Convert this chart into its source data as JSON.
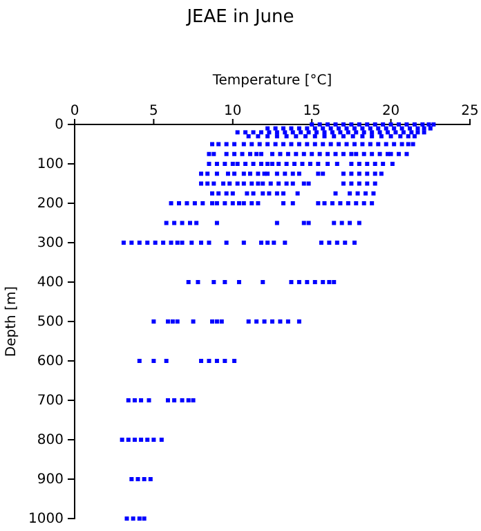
{
  "chart_data": {
    "type": "scatter",
    "title": "JEAE in June",
    "xlabel": "Temperature [°C]",
    "ylabel": "Depth [m]",
    "xlim": [
      0,
      25
    ],
    "xticks": [
      0,
      5,
      10,
      15,
      20,
      25
    ],
    "ylim": [
      1000,
      0
    ],
    "yticks": [
      0,
      100,
      200,
      300,
      400,
      500,
      600,
      700,
      800,
      900,
      1000
    ],
    "marker": "square",
    "series": [
      {
        "color": "#0000ff",
        "x": [
          15.0,
          15.5,
          16.0,
          16.5,
          17.0,
          17.5,
          18.0,
          18.5,
          19.0,
          19.5,
          20.0,
          20.5,
          21.0,
          21.5,
          22.0,
          22.4,
          22.7
        ],
        "values": [
          0,
          0,
          0,
          0,
          0,
          0,
          0,
          0,
          0,
          0,
          0,
          0,
          0,
          0,
          0,
          0,
          0
        ]
      },
      {
        "color": "#0000ff",
        "x": [
          12.2,
          12.7,
          13.2,
          13.7,
          14.2,
          14.7,
          15.2,
          15.7,
          16.2,
          16.7,
          17.2,
          17.7,
          18.2,
          18.7,
          19.2,
          19.7,
          20.2,
          20.7,
          21.2,
          21.7,
          22.1,
          22.5
        ],
        "values": [
          10,
          10,
          10,
          10,
          10,
          10,
          10,
          10,
          10,
          10,
          10,
          10,
          10,
          10,
          10,
          10,
          10,
          10,
          10,
          10,
          10,
          10
        ]
      },
      {
        "color": "#0000ff",
        "x": [
          10.3,
          10.8,
          11.3,
          11.8,
          12.3,
          12.8,
          13.3,
          13.8,
          14.3,
          14.8,
          15.3,
          15.8,
          16.3,
          16.8,
          17.3,
          17.8,
          18.3,
          18.8,
          19.3,
          19.8,
          20.3,
          20.8,
          21.3,
          21.7,
          22.1
        ],
        "values": [
          20,
          20,
          20,
          20,
          20,
          20,
          20,
          20,
          20,
          20,
          20,
          20,
          20,
          20,
          20,
          20,
          20,
          20,
          20,
          20,
          20,
          20,
          20,
          20,
          20
        ]
      },
      {
        "color": "#0000ff",
        "x": [
          11.0,
          11.6,
          12.2,
          12.8,
          13.4,
          14.0,
          14.6,
          15.2,
          15.8,
          16.4,
          17.0,
          17.6,
          18.2,
          18.8,
          19.4,
          20.0,
          20.6,
          21.1,
          21.5
        ],
        "values": [
          30,
          30,
          30,
          30,
          30,
          30,
          30,
          30,
          30,
          30,
          30,
          30,
          30,
          30,
          30,
          30,
          30,
          30,
          30
        ]
      },
      {
        "color": "#0000ff",
        "x": [
          8.7,
          9.1,
          9.6,
          10.1,
          10.7,
          11.2,
          11.7,
          12.2,
          12.7,
          13.2,
          13.7,
          14.2,
          14.7,
          15.2,
          15.7,
          16.2,
          16.7,
          17.2,
          17.7,
          18.2,
          18.7,
          19.2,
          19.7,
          20.2,
          20.7,
          21.1,
          21.4
        ],
        "values": [
          50,
          50,
          50,
          50,
          50,
          50,
          50,
          50,
          50,
          50,
          50,
          50,
          50,
          50,
          50,
          50,
          50,
          50,
          50,
          50,
          50,
          50,
          50,
          50,
          50,
          50,
          50
        ]
      },
      {
        "color": "#0000ff",
        "x": [
          8.5,
          8.8,
          9.6,
          10.1,
          10.6,
          11.1,
          11.5,
          11.8,
          12.5,
          13.0,
          13.5,
          14.0,
          14.5,
          15.0,
          15.5,
          16.0,
          16.5,
          17.0,
          17.5,
          17.8,
          18.3,
          18.8,
          19.3,
          19.8,
          20.0,
          20.5,
          21.0
        ],
        "values": [
          75,
          75,
          75,
          75,
          75,
          75,
          75,
          75,
          75,
          75,
          75,
          75,
          75,
          75,
          75,
          75,
          75,
          75,
          75,
          75,
          75,
          75,
          75,
          75,
          75,
          75,
          75
        ]
      },
      {
        "color": "#0000ff",
        "x": [
          8.5,
          9.0,
          9.5,
          10.0,
          10.3,
          10.8,
          11.3,
          11.8,
          12.2,
          12.5,
          12.9,
          13.4,
          13.9,
          14.4,
          14.9,
          15.4,
          16.0,
          16.6,
          17.5,
          18.0,
          18.5,
          19.0,
          19.5,
          20.1
        ],
        "values": [
          100,
          100,
          100,
          100,
          100,
          100,
          100,
          100,
          100,
          100,
          100,
          100,
          100,
          100,
          100,
          100,
          100,
          100,
          100,
          100,
          100,
          100,
          100,
          100
        ]
      },
      {
        "color": "#0000ff",
        "x": [
          8.0,
          8.4,
          9.0,
          9.7,
          10.1,
          10.7,
          11.1,
          11.6,
          12.0,
          12.2,
          12.8,
          13.3,
          13.8,
          14.2,
          15.4,
          15.7,
          17.0,
          17.5,
          18.0,
          18.5,
          19.0,
          19.4
        ],
        "values": [
          125,
          125,
          125,
          125,
          125,
          125,
          125,
          125,
          125,
          125,
          125,
          125,
          125,
          125,
          125,
          125,
          125,
          125,
          125,
          125,
          125,
          125
        ]
      },
      {
        "color": "#0000ff",
        "x": [
          8.0,
          8.4,
          8.8,
          9.4,
          9.8,
          10.3,
          10.7,
          11.2,
          11.6,
          11.9,
          12.4,
          12.9,
          13.4,
          13.8,
          14.5,
          14.8,
          17.0,
          17.5,
          18.0,
          18.5,
          19.0
        ],
        "values": [
          150,
          150,
          150,
          150,
          150,
          150,
          150,
          150,
          150,
          150,
          150,
          150,
          150,
          150,
          150,
          150,
          150,
          150,
          150,
          150,
          150
        ]
      },
      {
        "color": "#0000ff",
        "x": [
          8.7,
          9.1,
          9.6,
          10.0,
          10.9,
          11.3,
          11.9,
          12.3,
          12.8,
          13.2,
          14.1,
          16.5,
          17.4,
          17.9,
          18.4,
          18.9
        ],
        "values": [
          175,
          175,
          175,
          175,
          175,
          175,
          175,
          175,
          175,
          175,
          175,
          175,
          175,
          175,
          175,
          175
        ]
      },
      {
        "color": "#0000ff",
        "x": [
          6.1,
          6.6,
          7.1,
          7.6,
          8.1,
          8.7,
          9.0,
          9.5,
          10.0,
          10.4,
          10.7,
          11.2,
          11.6,
          13.2,
          13.8,
          15.4,
          15.8,
          16.3,
          16.8,
          17.3,
          17.8,
          18.3,
          18.8
        ],
        "values": [
          200,
          200,
          200,
          200,
          200,
          200,
          200,
          200,
          200,
          200,
          200,
          200,
          200,
          200,
          200,
          200,
          200,
          200,
          200,
          200,
          200,
          200,
          200
        ]
      },
      {
        "color": "#0000ff",
        "x": [
          5.8,
          6.3,
          6.8,
          7.3,
          7.7,
          9.0,
          12.8,
          14.5,
          14.8,
          16.4,
          16.9,
          17.4,
          18.0
        ],
        "values": [
          250,
          250,
          250,
          250,
          250,
          250,
          250,
          250,
          250,
          250,
          250,
          250,
          250
        ]
      },
      {
        "color": "#0000ff",
        "x": [
          3.1,
          3.6,
          4.1,
          4.6,
          5.1,
          5.6,
          6.1,
          6.5,
          6.8,
          7.4,
          8.0,
          8.5,
          9.6,
          10.7,
          11.8,
          12.2,
          12.6,
          13.3,
          15.6,
          16.1,
          16.6,
          17.1,
          17.7
        ],
        "values": [
          300,
          300,
          300,
          300,
          300,
          300,
          300,
          300,
          300,
          300,
          300,
          300,
          300,
          300,
          300,
          300,
          300,
          300,
          300,
          300,
          300,
          300,
          300
        ]
      },
      {
        "color": "#0000ff",
        "x": [
          7.2,
          7.8,
          8.8,
          9.5,
          10.4,
          11.9,
          13.7,
          14.2,
          14.7,
          15.2,
          15.7,
          16.1,
          16.4
        ],
        "values": [
          400,
          400,
          400,
          400,
          400,
          400,
          400,
          400,
          400,
          400,
          400,
          400,
          400
        ]
      },
      {
        "color": "#0000ff",
        "x": [
          5.0,
          5.9,
          6.2,
          6.5,
          7.5,
          8.7,
          9.0,
          9.3,
          11.0,
          11.5,
          12.0,
          12.5,
          13.0,
          13.5,
          14.2
        ],
        "values": [
          500,
          500,
          500,
          500,
          500,
          500,
          500,
          500,
          500,
          500,
          500,
          500,
          500,
          500,
          500
        ]
      },
      {
        "color": "#0000ff",
        "x": [
          4.1,
          5.0,
          5.8,
          8.0,
          8.5,
          9.0,
          9.5,
          10.1
        ],
        "values": [
          600,
          600,
          600,
          600,
          600,
          600,
          600,
          600
        ]
      },
      {
        "color": "#0000ff",
        "x": [
          3.4,
          3.8,
          4.2,
          4.7,
          5.9,
          6.3,
          6.8,
          7.2,
          7.5
        ],
        "values": [
          700,
          700,
          700,
          700,
          700,
          700,
          700,
          700,
          700
        ]
      },
      {
        "color": "#0000ff",
        "x": [
          3.0,
          3.4,
          3.8,
          4.2,
          4.6,
          5.0,
          5.5
        ],
        "values": [
          800,
          800,
          800,
          800,
          800,
          800,
          800
        ]
      },
      {
        "color": "#0000ff",
        "x": [
          3.6,
          4.0,
          4.4,
          4.8
        ],
        "values": [
          900,
          900,
          900,
          900
        ]
      },
      {
        "color": "#0000ff",
        "x": [
          3.3,
          3.7,
          4.1,
          4.4
        ],
        "values": [
          1000,
          1000,
          1000,
          1000
        ]
      }
    ]
  }
}
